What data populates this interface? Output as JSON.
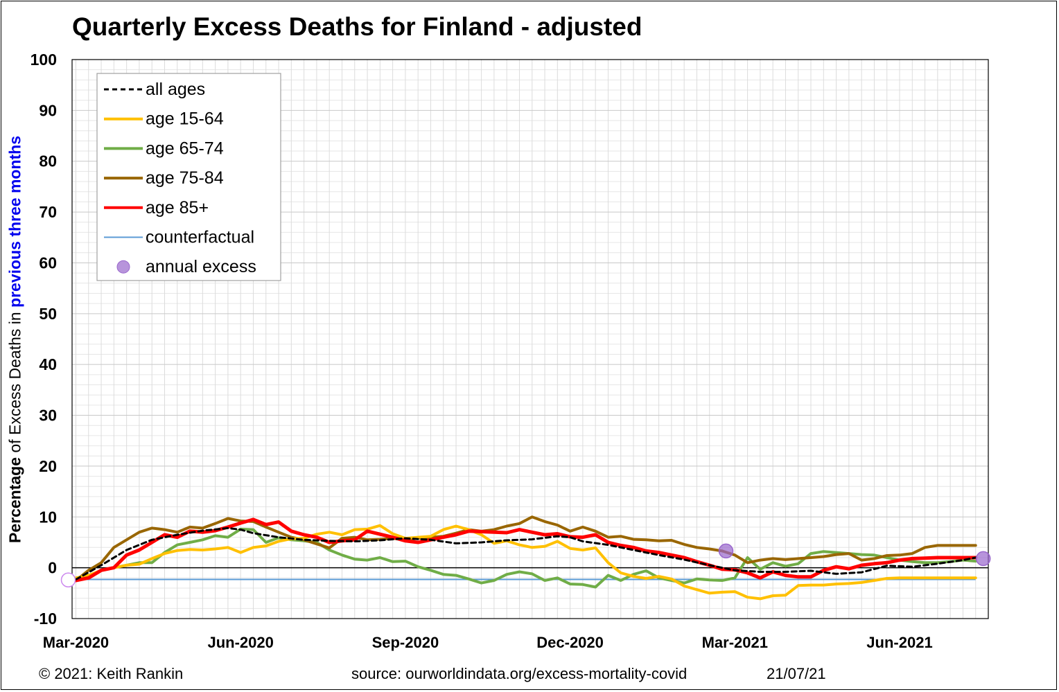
{
  "title": "Quarterly Excess Deaths for Finland - adjusted",
  "ylabel": {
    "part1": "Percentage",
    "part2": " of Excess Deaths in ",
    "part3": "previous three months"
  },
  "footer": {
    "copyright": "© 2021: Keith Rankin",
    "source": "source: ourworldindata.org/excess-mortality-covid",
    "date": "21/07/21"
  },
  "chart_data": {
    "type": "line",
    "title": "Quarterly Excess Deaths for Finland - adjusted",
    "ylabel": "Percentage of Excess Deaths in previous three months",
    "ylim": [
      -10,
      100
    ],
    "yticks": [
      -10,
      0,
      10,
      20,
      30,
      40,
      50,
      60,
      70,
      80,
      90,
      100
    ],
    "xticks": [
      "Mar-2020",
      "Jun-2020",
      "Sep-2020",
      "Dec-2020",
      "Mar-2021",
      "Jun-2021"
    ],
    "x_unit": "week",
    "x_range": [
      -0.3,
      72
    ],
    "xtick_positions": [
      0,
      13,
      26,
      39,
      52,
      65
    ],
    "grid": true,
    "legend_position": "top-left",
    "counterfactual": -2.3,
    "annual_excess": [
      {
        "x": -0.6,
        "y": -2.4
      },
      {
        "x": 51.3,
        "y": 3.3
      },
      {
        "x": 71.6,
        "y": 1.8
      }
    ],
    "series": [
      {
        "name": "all ages",
        "color": "#000000",
        "dash": "7,5",
        "width": 3,
        "x": [
          0,
          2,
          4,
          6,
          8,
          10,
          12,
          13,
          14,
          16,
          18,
          20,
          22,
          24,
          26,
          28,
          30,
          32,
          34,
          36,
          38,
          39,
          40,
          42,
          44,
          46,
          48,
          50,
          52,
          54,
          56,
          58,
          60,
          62,
          64,
          66,
          68,
          70,
          71
        ],
        "y": [
          -2.3,
          0.5,
          3.5,
          5.5,
          6.5,
          7.3,
          7.8,
          7.5,
          6.8,
          6.0,
          5.5,
          5.3,
          5.2,
          5.4,
          5.8,
          5.5,
          4.8,
          5.0,
          5.4,
          5.6,
          6.2,
          6.0,
          5.2,
          4.5,
          3.5,
          2.5,
          1.6,
          0.5,
          -0.5,
          -0.8,
          -0.8,
          -0.6,
          -1.2,
          -0.9,
          0.4,
          0.2,
          0.8,
          1.5,
          2.0
        ]
      },
      {
        "name": "age 15-64",
        "color": "#ffc000",
        "width": 4,
        "x": [
          0,
          1,
          2,
          3,
          4,
          5,
          6,
          7,
          8,
          9,
          10,
          11,
          12,
          13,
          14,
          15,
          16,
          17,
          18,
          19,
          20,
          21,
          22,
          23,
          24,
          25,
          26,
          27,
          28,
          29,
          30,
          31,
          32,
          33,
          34,
          35,
          36,
          37,
          38,
          39,
          40,
          41,
          42,
          43,
          44,
          45,
          46,
          47,
          48,
          49,
          50,
          51,
          52,
          53,
          54,
          55,
          56,
          57,
          58,
          59,
          60,
          61,
          62,
          63,
          64,
          65,
          66,
          67,
          68,
          69,
          70,
          71
        ],
        "y": [
          -2.0,
          -1.5,
          -0.5,
          0.0,
          0.5,
          0.7,
          1.8,
          2.8,
          3.4,
          3.6,
          3.5,
          3.7,
          4.0,
          3.0,
          4.0,
          4.3,
          5.2,
          5.7,
          5.8,
          6.6,
          7.0,
          6.5,
          7.5,
          7.6,
          8.3,
          6.7,
          5.8,
          6.0,
          6.2,
          7.5,
          8.2,
          7.5,
          6.5,
          4.8,
          5.3,
          4.5,
          4.0,
          4.2,
          5.2,
          3.8,
          3.5,
          3.9,
          1.0,
          -1.0,
          -1.7,
          -2.1,
          -1.7,
          -2.2,
          -3.6,
          -4.3,
          -5.0,
          -4.8,
          -4.7,
          -5.8,
          -6.1,
          -5.5,
          -5.4,
          -3.5,
          -3.4,
          -3.4,
          -3.2,
          -3.1,
          -2.9,
          -2.5,
          -2.1,
          -2.0,
          -2.0,
          -2.0,
          -2.0,
          -2.0,
          -2.0,
          -2.0
        ]
      },
      {
        "name": "age 65-74",
        "color": "#70ad47",
        "width": 4,
        "x": [
          0,
          1,
          2,
          3,
          4,
          5,
          6,
          7,
          8,
          9,
          10,
          11,
          12,
          13,
          14,
          15,
          16,
          17,
          18,
          19,
          20,
          21,
          22,
          23,
          24,
          25,
          26,
          27,
          28,
          29,
          30,
          31,
          32,
          33,
          34,
          35,
          36,
          37,
          38,
          39,
          40,
          41,
          42,
          43,
          44,
          45,
          46,
          47,
          48,
          49,
          50,
          51,
          52,
          53,
          54,
          55,
          56,
          57,
          58,
          59,
          60,
          61,
          62,
          63,
          64,
          65,
          66,
          67,
          68,
          69,
          70,
          71
        ],
        "y": [
          -2.5,
          -1.8,
          -0.5,
          0.0,
          0.5,
          1.0,
          1.0,
          3.0,
          4.5,
          5.0,
          5.5,
          6.3,
          6.0,
          7.6,
          7.5,
          5.0,
          5.9,
          5.5,
          5.3,
          5.0,
          3.5,
          2.5,
          1.7,
          1.5,
          2.0,
          1.2,
          1.3,
          0.2,
          -0.5,
          -1.3,
          -1.5,
          -2.2,
          -3.0,
          -2.5,
          -1.3,
          -0.8,
          -1.2,
          -2.5,
          -2.0,
          -3.2,
          -3.3,
          -3.8,
          -1.5,
          -2.5,
          -1.3,
          -0.6,
          -2.0,
          -2.5,
          -3.0,
          -2.2,
          -2.4,
          -2.5,
          -2.0,
          2.0,
          -0.3,
          1.0,
          0.3,
          0.8,
          2.8,
          3.2,
          3.0,
          2.8,
          2.6,
          2.5,
          2.0,
          1.5,
          1.2,
          1.0,
          1.0,
          1.2,
          1.5,
          1.3
        ]
      },
      {
        "name": "age 75-84",
        "color": "#996600",
        "width": 4,
        "x": [
          0,
          1,
          2,
          3,
          4,
          5,
          6,
          7,
          8,
          9,
          10,
          11,
          12,
          13,
          14,
          15,
          16,
          17,
          18,
          19,
          20,
          21,
          22,
          23,
          24,
          25,
          26,
          27,
          28,
          29,
          30,
          31,
          32,
          33,
          34,
          35,
          36,
          37,
          38,
          39,
          40,
          41,
          42,
          43,
          44,
          45,
          46,
          47,
          48,
          49,
          50,
          51,
          52,
          53,
          54,
          55,
          56,
          57,
          58,
          59,
          60,
          61,
          62,
          63,
          64,
          65,
          66,
          67,
          68,
          69,
          70,
          71
        ],
        "y": [
          -2.5,
          -0.5,
          1.0,
          4.0,
          5.5,
          7.0,
          7.8,
          7.5,
          7.0,
          8.0,
          7.8,
          8.7,
          9.7,
          9.2,
          9.1,
          8.0,
          7.0,
          6.0,
          5.5,
          4.7,
          3.9,
          5.8,
          6.0,
          5.5,
          5.6,
          5.8,
          5.5,
          5.8,
          6.0,
          6.2,
          6.8,
          7.5,
          7.2,
          7.5,
          8.2,
          8.7,
          10.0,
          9.1,
          8.4,
          7.2,
          8.0,
          7.2,
          6.0,
          6.2,
          5.6,
          5.5,
          5.3,
          5.4,
          4.6,
          4.0,
          3.7,
          3.3,
          2.5,
          1.0,
          1.5,
          1.8,
          1.6,
          1.8,
          2.0,
          2.2,
          2.6,
          2.8,
          1.5,
          1.8,
          2.4,
          2.5,
          2.8,
          4.0,
          4.4,
          4.4,
          4.4,
          4.4
        ]
      },
      {
        "name": "age 85+",
        "color": "#ff0000",
        "width": 5,
        "x": [
          0,
          1,
          2,
          3,
          4,
          5,
          6,
          7,
          8,
          9,
          10,
          11,
          12,
          13,
          14,
          15,
          16,
          17,
          18,
          19,
          20,
          21,
          22,
          23,
          24,
          25,
          26,
          27,
          28,
          29,
          30,
          31,
          32,
          33,
          34,
          35,
          36,
          37,
          38,
          39,
          40,
          41,
          42,
          43,
          44,
          45,
          46,
          47,
          48,
          49,
          50,
          51,
          52,
          53,
          54,
          55,
          56,
          57,
          58,
          59,
          60,
          61,
          62,
          63,
          64,
          65,
          66,
          67,
          68,
          69,
          70,
          71
        ],
        "y": [
          -2.5,
          -2.0,
          -0.5,
          0.0,
          2.5,
          3.5,
          5.0,
          6.5,
          6.0,
          7.2,
          7.0,
          7.3,
          8.0,
          8.8,
          9.5,
          8.5,
          9.0,
          7.2,
          6.5,
          6.0,
          5.0,
          5.3,
          5.5,
          7.2,
          6.6,
          6.0,
          5.3,
          5.0,
          5.5,
          6.0,
          6.5,
          7.2,
          7.1,
          7.0,
          6.9,
          7.5,
          7.0,
          6.5,
          6.7,
          6.1,
          6.0,
          6.5,
          5.0,
          4.4,
          4.0,
          3.3,
          3.0,
          2.5,
          2.0,
          1.2,
          0.5,
          -0.3,
          -0.4,
          -1.0,
          -2.0,
          -0.8,
          -1.5,
          -1.8,
          -1.8,
          -0.5,
          0.2,
          -0.2,
          0.5,
          0.8,
          1.0,
          1.5,
          1.8,
          1.9,
          2.0,
          2.0,
          2.0,
          2.0
        ]
      }
    ]
  },
  "legend": {
    "items": [
      {
        "label": "all ages",
        "kind": "dash",
        "color": "#000000"
      },
      {
        "label": "age 15-64",
        "kind": "line",
        "color": "#ffc000"
      },
      {
        "label": "age 65-74",
        "kind": "line",
        "color": "#70ad47"
      },
      {
        "label": "age 75-84",
        "kind": "line",
        "color": "#996600"
      },
      {
        "label": "age 85+",
        "kind": "line",
        "color": "#ff0000"
      },
      {
        "label": "counterfactual",
        "kind": "thin",
        "color": "#5b9bd5"
      },
      {
        "label": "annual excess",
        "kind": "dot",
        "color": "#9966cc"
      }
    ]
  }
}
